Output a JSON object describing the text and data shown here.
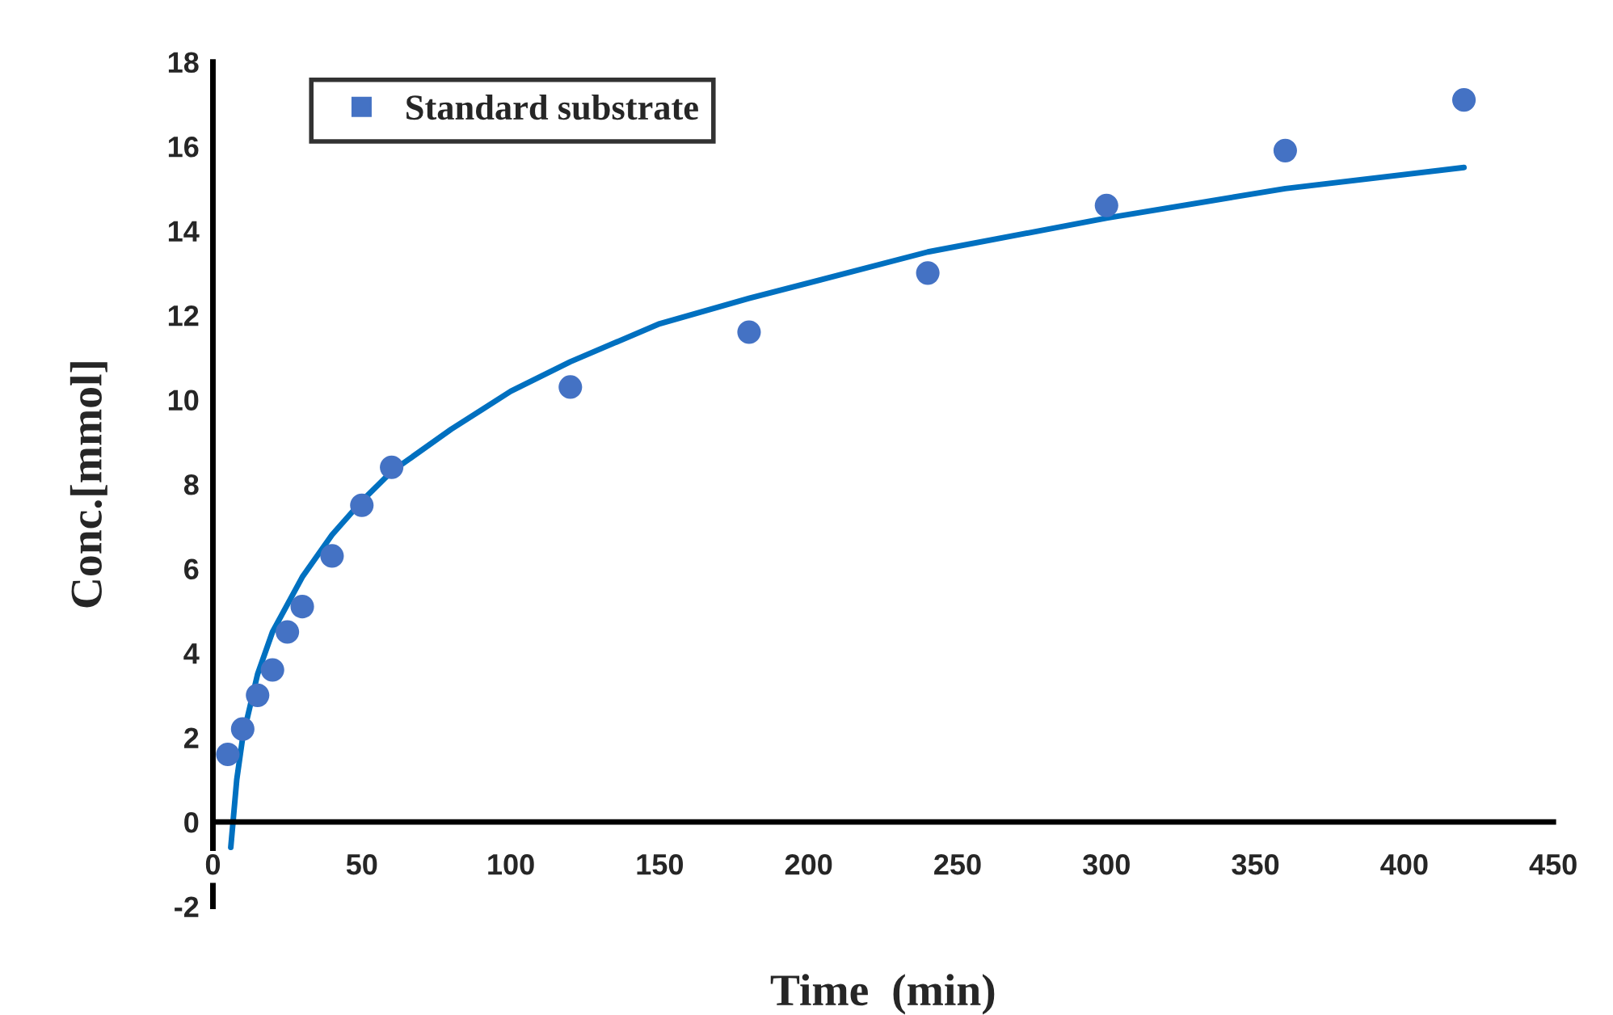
{
  "chart_data": {
    "type": "scatter",
    "xlabel": "Time  (min)",
    "ylabel": "Conc.[mmol]",
    "xlim": [
      0,
      450
    ],
    "xticks": [
      0,
      50,
      100,
      150,
      200,
      250,
      300,
      350,
      400,
      450
    ],
    "ylim": [
      -2,
      18
    ],
    "yticks": [
      -2,
      0,
      2,
      4,
      6,
      8,
      10,
      12,
      14,
      16,
      18
    ],
    "grid": false,
    "legend": "top left",
    "series": [
      {
        "name": "Standard substrate",
        "marker": "circle",
        "color": "#4472c4",
        "x": [
          5,
          10,
          15,
          20,
          25,
          30,
          40,
          50,
          60,
          120,
          180,
          240,
          300,
          360,
          420
        ],
        "values": [
          1.6,
          2.2,
          3.0,
          3.6,
          4.5,
          5.1,
          6.3,
          7.5,
          8.4,
          10.3,
          11.6,
          13.0,
          14.6,
          15.9,
          17.1
        ]
      },
      {
        "type": "line",
        "marker": "none",
        "color": "#0070c0",
        "line_style": "solid",
        "x": [
          6,
          8,
          10,
          15,
          20,
          30,
          40,
          50,
          60,
          80,
          100,
          120,
          150,
          180,
          240,
          300,
          360,
          420
        ],
        "values": [
          -0.6,
          1.0,
          2.0,
          3.5,
          4.5,
          5.8,
          6.8,
          7.6,
          8.3,
          9.3,
          10.2,
          10.9,
          11.8,
          12.4,
          13.5,
          14.3,
          15.0,
          15.5
        ]
      }
    ]
  }
}
